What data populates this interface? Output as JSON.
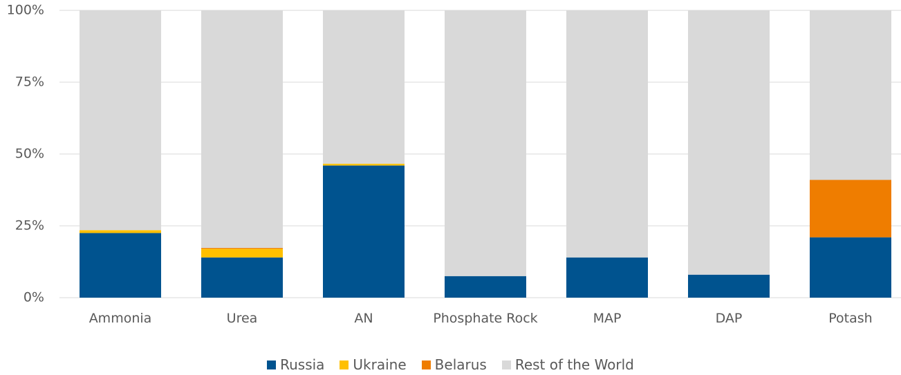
{
  "chart_data": {
    "type": "stacked_bar",
    "categories": [
      "Ammonia",
      "Urea",
      "AN",
      "Phosphate Rock",
      "MAP",
      "DAP",
      "Potash"
    ],
    "series": [
      {
        "name": "Russia",
        "color": "#00538f",
        "values": [
          22.5,
          14,
          46,
          7.5,
          14,
          8,
          21
        ]
      },
      {
        "name": "Ukraine",
        "color": "#ffc000",
        "values": [
          1,
          3,
          0.6,
          0,
          0,
          0,
          0
        ]
      },
      {
        "name": "Belarus",
        "color": "#ef7d00",
        "values": [
          0,
          0.3,
          0,
          0,
          0,
          0,
          20
        ]
      },
      {
        "name": "Rest of the World",
        "color": "#d9d9d9",
        "values": [
          76.5,
          82.7,
          53.4,
          92.5,
          86,
          92,
          59
        ]
      }
    ],
    "ylim": [
      0,
      100
    ],
    "yticks": [
      {
        "value": 0,
        "label": "0%"
      },
      {
        "value": 25,
        "label": "25%"
      },
      {
        "value": 50,
        "label": "50%"
      },
      {
        "value": 75,
        "label": "75%"
      },
      {
        "value": 100,
        "label": "100%"
      }
    ],
    "grid": true,
    "legend": "bottom"
  }
}
